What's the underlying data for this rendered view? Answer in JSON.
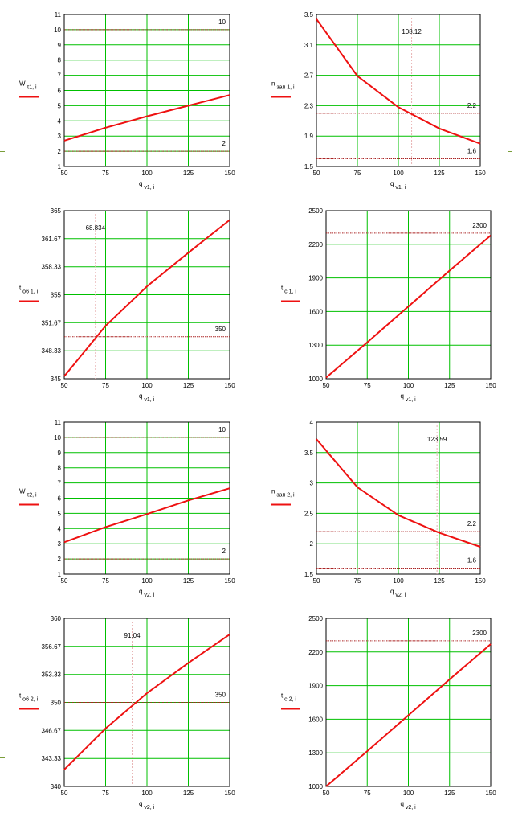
{
  "colors": {
    "grid": "#00c000",
    "curve": "#ee1111",
    "ref": "#aa2222",
    "marker": "#e8b4b4",
    "frame": "#000000"
  },
  "chart_data": [
    {
      "type": "line",
      "ylabel_main": "W",
      "ylabel_sub": "τ1, i",
      "xlabel_main": "q",
      "xlabel_sub": "v1, i",
      "xlim": [
        50,
        150
      ],
      "ylim": [
        1,
        11
      ],
      "x_ticks": [
        "50",
        "75",
        "100",
        "125",
        "150"
      ],
      "y_ticks": [
        "1",
        "2",
        "3",
        "4",
        "5",
        "6",
        "7",
        "8",
        "9",
        "10",
        "11"
      ],
      "series": [
        {
          "x": [
            50,
            75,
            100,
            125,
            150
          ],
          "y": [
            2.7,
            3.55,
            4.3,
            5.0,
            5.7
          ]
        }
      ],
      "hlines": [
        {
          "y": 10,
          "label": "10"
        },
        {
          "y": 2,
          "label": "2"
        }
      ],
      "vlines": []
    },
    {
      "type": "line",
      "ylabel_main": "n",
      "ylabel_sub": "зап 1, i",
      "xlabel_main": "q",
      "xlabel_sub": "v1, i",
      "xlim": [
        50,
        150
      ],
      "ylim": [
        1.5,
        3.5
      ],
      "x_ticks": [
        "50",
        "75",
        "100",
        "125",
        "150"
      ],
      "y_ticks": [
        "1.5",
        "1.9",
        "2.3",
        "2.7",
        "3.1",
        "3.5"
      ],
      "series": [
        {
          "x": [
            50,
            75,
            100,
            125,
            150
          ],
          "y": [
            3.44,
            2.69,
            2.28,
            2.0,
            1.8
          ]
        }
      ],
      "hlines": [
        {
          "y": 2.2,
          "label": "2.2"
        },
        {
          "y": 1.6,
          "label": "1.6"
        }
      ],
      "vlines": [
        {
          "x": 108.12,
          "label": "108.12"
        }
      ]
    },
    {
      "type": "line",
      "ylabel_main": "t",
      "ylabel_sub": "o6 1, i",
      "xlabel_main": "q",
      "xlabel_sub": "v1, i",
      "xlim": [
        50,
        150
      ],
      "ylim": [
        345,
        365
      ],
      "x_ticks": [
        "50",
        "75",
        "100",
        "125",
        "150"
      ],
      "y_ticks": [
        "345",
        "348.33",
        "351.67",
        "355",
        "358.33",
        "361.67",
        "365"
      ],
      "series": [
        {
          "x": [
            50,
            75,
            100,
            125,
            150
          ],
          "y": [
            345.3,
            351.3,
            356.0,
            360.0,
            363.9
          ]
        }
      ],
      "hlines": [
        {
          "y": 350,
          "label": "350"
        }
      ],
      "vlines": [
        {
          "x": 68.834,
          "label": "68.834"
        }
      ]
    },
    {
      "type": "line",
      "ylabel_main": "t",
      "ylabel_sub": "c 1, i",
      "xlabel_main": "q",
      "xlabel_sub": "v1, i",
      "xlim": [
        50,
        150
      ],
      "ylim": [
        1000,
        2500
      ],
      "x_ticks": [
        "50",
        "75",
        "100",
        "125",
        "150"
      ],
      "y_ticks": [
        "1000",
        "1300",
        "1600",
        "1900",
        "2200",
        "2500"
      ],
      "series": [
        {
          "x": [
            50,
            75,
            100,
            125,
            150
          ],
          "y": [
            1010,
            1325,
            1645,
            1965,
            2280
          ]
        }
      ],
      "hlines": [
        {
          "y": 2300,
          "label": "2300"
        }
      ],
      "vlines": []
    },
    {
      "type": "line",
      "ylabel_main": "W",
      "ylabel_sub": "τ2, i",
      "xlabel_main": "q",
      "xlabel_sub": "v2, i",
      "xlim": [
        50,
        150
      ],
      "ylim": [
        1,
        11
      ],
      "x_ticks": [
        "50",
        "75",
        "100",
        "125",
        "150"
      ],
      "y_ticks": [
        "1",
        "2",
        "3",
        "4",
        "5",
        "6",
        "7",
        "8",
        "9",
        "10",
        "11"
      ],
      "series": [
        {
          "x": [
            50,
            75,
            100,
            125,
            150
          ],
          "y": [
            3.1,
            4.1,
            4.95,
            5.85,
            6.65
          ]
        }
      ],
      "hlines": [
        {
          "y": 10,
          "label": "10"
        },
        {
          "y": 2,
          "label": "2"
        }
      ],
      "vlines": []
    },
    {
      "type": "line",
      "ylabel_main": "n",
      "ylabel_sub": "зап 2, i",
      "xlabel_main": "q",
      "xlabel_sub": "v2, i",
      "xlim": [
        50,
        150
      ],
      "ylim": [
        1.5,
        4
      ],
      "x_ticks": [
        "50",
        "75",
        "100",
        "125",
        "150"
      ],
      "y_ticks": [
        "1.5",
        "2",
        "2.5",
        "3",
        "3.5",
        "4"
      ],
      "series": [
        {
          "x": [
            50,
            75,
            100,
            125,
            150
          ],
          "y": [
            3.72,
            2.93,
            2.47,
            2.18,
            1.95
          ]
        }
      ],
      "hlines": [
        {
          "y": 2.2,
          "label": "2.2"
        },
        {
          "y": 1.6,
          "label": "1.6"
        }
      ],
      "vlines": [
        {
          "x": 123.59,
          "label": "123.59"
        }
      ]
    },
    {
      "type": "line",
      "ylabel_main": "t",
      "ylabel_sub": "o6 2, i",
      "xlabel_main": "q",
      "xlabel_sub": "v2, i",
      "xlim": [
        50,
        150
      ],
      "ylim": [
        340,
        360
      ],
      "x_ticks": [
        "50",
        "75",
        "100",
        "125",
        "150"
      ],
      "y_ticks": [
        "340",
        "343.33",
        "346.67",
        "350",
        "353.33",
        "356.67",
        "360"
      ],
      "series": [
        {
          "x": [
            50,
            75,
            100,
            125,
            150
          ],
          "y": [
            342.0,
            346.9,
            351.1,
            354.7,
            358.1
          ]
        }
      ],
      "hlines": [
        {
          "y": 350,
          "label": "350"
        }
      ],
      "vlines": [
        {
          "x": 91.04,
          "label": "91.04"
        }
      ]
    },
    {
      "type": "line",
      "ylabel_main": "t",
      "ylabel_sub": "c 2, i",
      "xlabel_main": "q",
      "xlabel_sub": "v2, i",
      "xlim": [
        50,
        150
      ],
      "ylim": [
        1000,
        2500
      ],
      "x_ticks": [
        "50",
        "75",
        "100",
        "125",
        "150"
      ],
      "y_ticks": [
        "1000",
        "1300",
        "1600",
        "1900",
        "2200",
        "2500"
      ],
      "series": [
        {
          "x": [
            50,
            75,
            100,
            125,
            150
          ],
          "y": [
            1000,
            1315,
            1635,
            1955,
            2270
          ]
        }
      ],
      "hlines": [
        {
          "y": 2300,
          "label": "2300"
        }
      ],
      "vlines": []
    }
  ]
}
